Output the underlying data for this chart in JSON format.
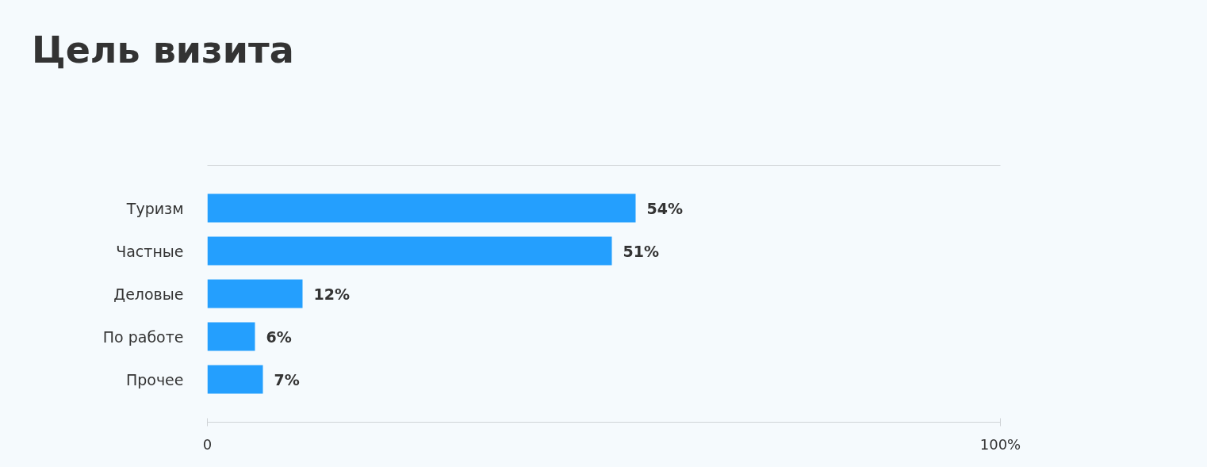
{
  "chart_data": {
    "type": "bar",
    "orientation": "horizontal",
    "title": "Цель визита",
    "categories": [
      "Туризм",
      "Частные",
      "Деловые",
      "По работе",
      "Прочее"
    ],
    "values": [
      54,
      51,
      12,
      6,
      7
    ],
    "value_labels": [
      "54%",
      "51%",
      "12%",
      "6%",
      "7%"
    ],
    "color": "#249ffe",
    "xlim": [
      0,
      100
    ],
    "xticks": [
      0,
      {
        "value": 100,
        "label": "100%"
      }
    ],
    "grid": false
  }
}
